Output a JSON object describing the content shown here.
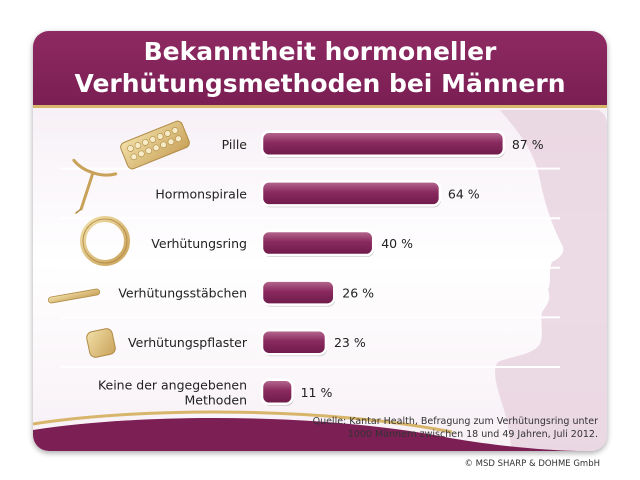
{
  "chart_data": {
    "type": "bar",
    "orientation": "horizontal",
    "title": "Bekanntheit hormoneller Verhütungsmethoden bei Männern",
    "title_lines": [
      "Bekanntheit hormoneller",
      "Verhütungsmethoden bei Männern"
    ],
    "categories": [
      "Pille",
      "Hormonspirale",
      "Verhütungsring",
      "Verhütungsstäbchen",
      "Verhütungspflaster",
      "Keine der angegebenen Methoden"
    ],
    "category_lines": [
      [
        "Pille"
      ],
      [
        "Hormonspirale"
      ],
      [
        "Verhütungsring"
      ],
      [
        "Verhütungsstäbchen"
      ],
      [
        "Verhütungspflaster"
      ],
      [
        "Keine der angegebenen",
        "Methoden"
      ]
    ],
    "values": [
      87,
      64,
      40,
      26,
      23,
      11
    ],
    "value_labels": [
      "87 %",
      "64 %",
      "40 %",
      "26 %",
      "23 %",
      "11 %"
    ],
    "unit": "%",
    "xlim": [
      0,
      100
    ],
    "grid": false,
    "legend": "none"
  },
  "source_lines": [
    "Quelle: Kantar Health, Befragung zum Verhütungsring unter",
    "1000 Männern zwischen 18 und 49 Jahren, Juli 2012."
  ],
  "copyright": "© MSD SHARP & DOHME GmbH",
  "colors": {
    "header": "#7f2158",
    "bar": "#8a2a5f",
    "bar_light": "#b86d93",
    "accent_gold": "#d7b56a",
    "silhouette": "#dcbfd0"
  }
}
